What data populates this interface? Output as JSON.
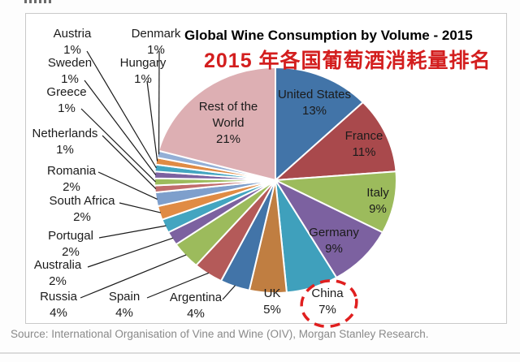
{
  "page": {
    "title": "Global Wine Consumption by Volume - 2015",
    "subtitle_cn": "2015 年各国葡萄酒消耗量排名",
    "subtitle_color": "#d31e1e",
    "source_note": "Source: International Organisation of Vine and Wine (OIV), Morgan Stanley Research.",
    "frame_border_color": "#c9c9c9"
  },
  "chart_data": {
    "type": "pie",
    "title": "Global Wine Consumption by Volume - 2015",
    "unit": "percent of global wine consumption volume",
    "start_angle": "12 o'clock",
    "direction": "clockwise",
    "legend_position": "none",
    "categories": [
      "United States",
      "France",
      "Italy",
      "Germany",
      "China",
      "UK",
      "Argentina",
      "Spain",
      "Russia",
      "Australia",
      "Portugal",
      "South Africa",
      "Romania",
      "Netherlands",
      "Greece",
      "Sweden",
      "Austria",
      "Hungary",
      "Denmark",
      "Rest of the World"
    ],
    "values": [
      13,
      11,
      9,
      9,
      7,
      5,
      4,
      4,
      4,
      2,
      2,
      2,
      2,
      1,
      1,
      1,
      1,
      1,
      1,
      21
    ],
    "colors": [
      "#4274a8",
      "#a9494c",
      "#9cbb5c",
      "#7c61a0",
      "#3fa0bc",
      "#c07e41",
      "#4274a8",
      "#b45a59",
      "#9cbb5c",
      "#7c61a0",
      "#43a5c0",
      "#e08b44",
      "#7e9fcc",
      "#c16c6c",
      "#9cbb5c",
      "#7c61a0",
      "#43a5c0",
      "#e08b44",
      "#93afd6",
      "#ddafb3"
    ],
    "slice_border_color": "#ffffff",
    "label_format": "category + percent; large slices labeled inside, small slices outside with black leader lines",
    "annotation": {
      "target": "China",
      "target_value": 7,
      "style": "red dashed ellipse around the China 7% label",
      "color": "#e01f1f"
    }
  }
}
